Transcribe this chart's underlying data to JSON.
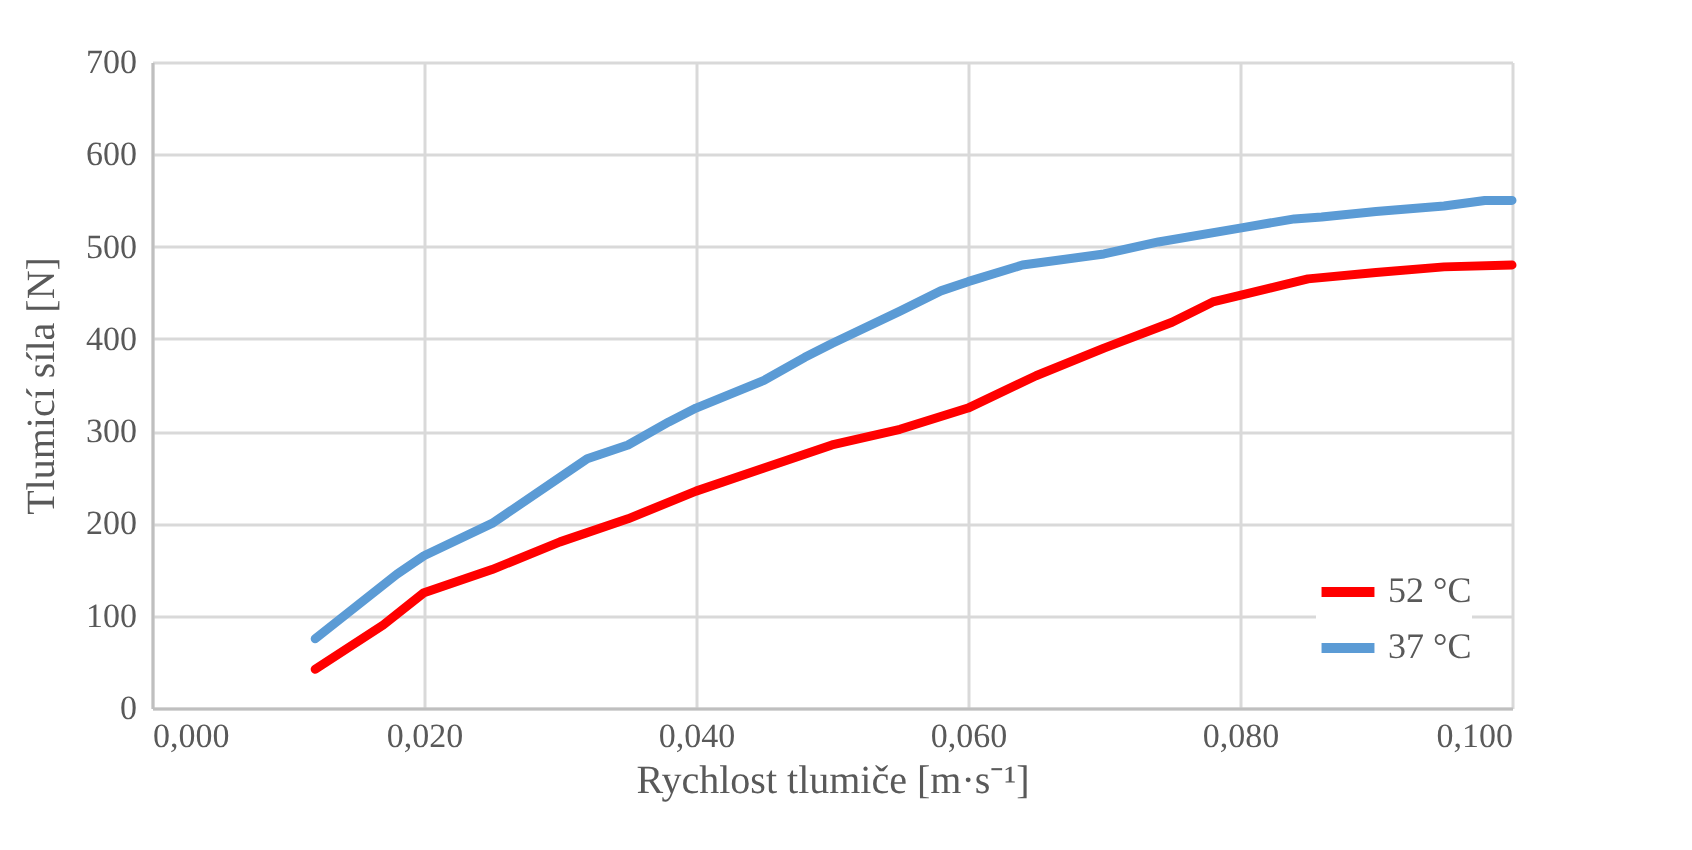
{
  "chart_data": {
    "type": "line",
    "xlabel": "Rychlost tlumiče [m·s⁻¹]",
    "ylabel": "Tlumicí síla [N]",
    "xlim": [
      0,
      0.1
    ],
    "xticks": [
      {
        "value": 0,
        "label": "0,000"
      },
      {
        "value": 0.02,
        "label": "0,020"
      },
      {
        "value": 0.04,
        "label": "0,040"
      },
      {
        "value": 0.06,
        "label": "0,060"
      },
      {
        "value": 0.08,
        "label": "0,080"
      },
      {
        "value": 0.1,
        "label": "0,100"
      }
    ],
    "ylim": [
      0,
      700
    ],
    "yticks": [
      0,
      100,
      200,
      300,
      400,
      500,
      600,
      700
    ],
    "grid": true,
    "legend": "bottom right",
    "line_style": "solid",
    "series": [
      {
        "name": "52 °C",
        "color": "#ff0000",
        "x": [
          0.012,
          0.017,
          0.02,
          0.025,
          0.03,
          0.035,
          0.04,
          0.045,
          0.05,
          0.055,
          0.06,
          0.065,
          0.07,
          0.075,
          0.078,
          0.08,
          0.085,
          0.09,
          0.095,
          0.1
        ],
        "values": [
          42,
          90,
          125,
          150,
          180,
          205,
          235,
          260,
          285,
          302,
          325,
          360,
          390,
          418,
          440,
          447,
          465,
          472,
          478,
          480
        ]
      },
      {
        "name": "37 °C",
        "color": "#5b9bd5",
        "x": [
          0.012,
          0.015,
          0.018,
          0.02,
          0.025,
          0.03,
          0.032,
          0.035,
          0.038,
          0.04,
          0.045,
          0.048,
          0.05,
          0.055,
          0.058,
          0.06,
          0.064,
          0.07,
          0.074,
          0.08,
          0.084,
          0.086,
          0.09,
          0.095,
          0.098,
          0.1
        ],
        "values": [
          75,
          110,
          145,
          165,
          200,
          250,
          270,
          285,
          310,
          325,
          355,
          380,
          395,
          430,
          452,
          462,
          480,
          492,
          505,
          520,
          530,
          532,
          538,
          544,
          550,
          550
        ]
      }
    ]
  }
}
